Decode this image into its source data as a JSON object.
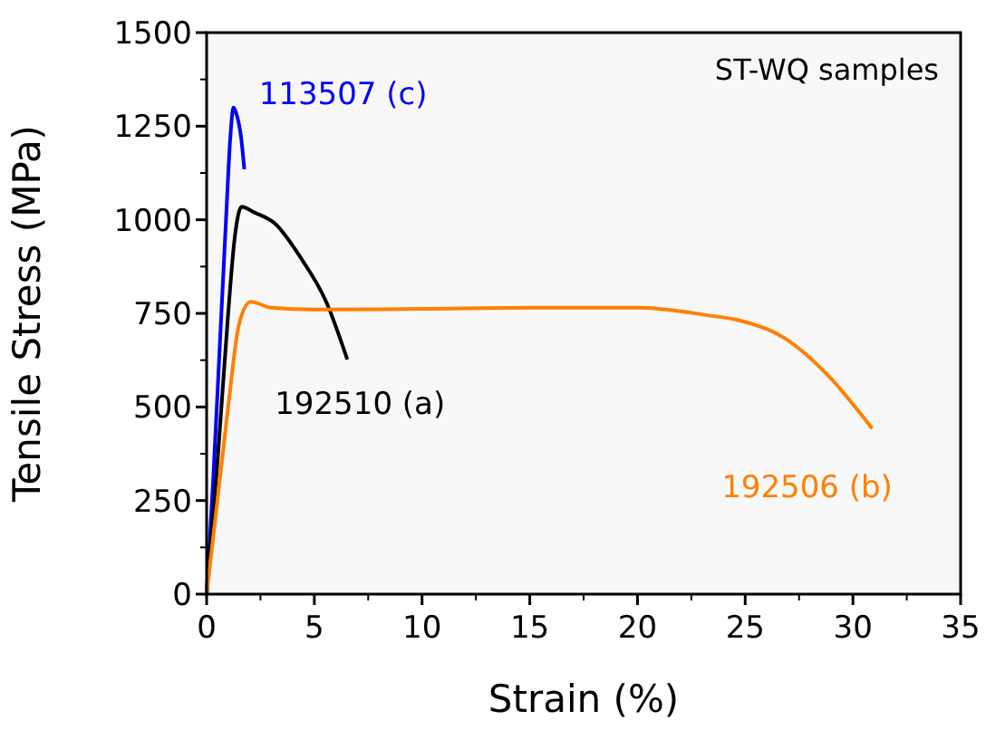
{
  "chart_data": {
    "type": "line",
    "xlabel": "Strain (%)",
    "ylabel": "Tensile Stress (MPa)",
    "annotations": [
      "ST-WQ samples"
    ],
    "xlim": [
      0,
      35
    ],
    "xticks": [
      0,
      5,
      10,
      15,
      20,
      25,
      30,
      35
    ],
    "ylim": [
      0,
      1500
    ],
    "yticks": [
      0,
      250,
      500,
      750,
      1000,
      1250,
      1500
    ],
    "marker": "none",
    "line_style": "solid",
    "series": [
      {
        "name": "113507 (c)",
        "color": "#0000ff",
        "x": [
          0,
          0.3,
          0.6,
          0.9,
          1.1,
          1.25,
          1.4,
          1.6,
          1.75
        ],
        "values": [
          0,
          300,
          650,
          1000,
          1220,
          1300,
          1280,
          1220,
          1135
        ]
      },
      {
        "name": "192510 (a)",
        "color": "#000000",
        "x": [
          0,
          0.5,
          1.0,
          1.3,
          1.62,
          2.2,
          3.17,
          4.43,
          5.55,
          6.53
        ],
        "values": [
          0,
          350,
          750,
          950,
          1035,
          1020,
          990,
          893,
          781,
          627
        ]
      },
      {
        "name": "192506 (b)",
        "color": "#ff7f00",
        "x": [
          0,
          0.5,
          1.0,
          1.5,
          2.04,
          3,
          5,
          10,
          15,
          20,
          23.5,
          24.6,
          26.8,
          28.8,
          30.9
        ],
        "values": [
          0,
          250,
          500,
          720,
          781,
          765,
          760,
          762,
          765,
          765,
          743,
          733,
          685,
          587,
          442
        ]
      }
    ]
  }
}
